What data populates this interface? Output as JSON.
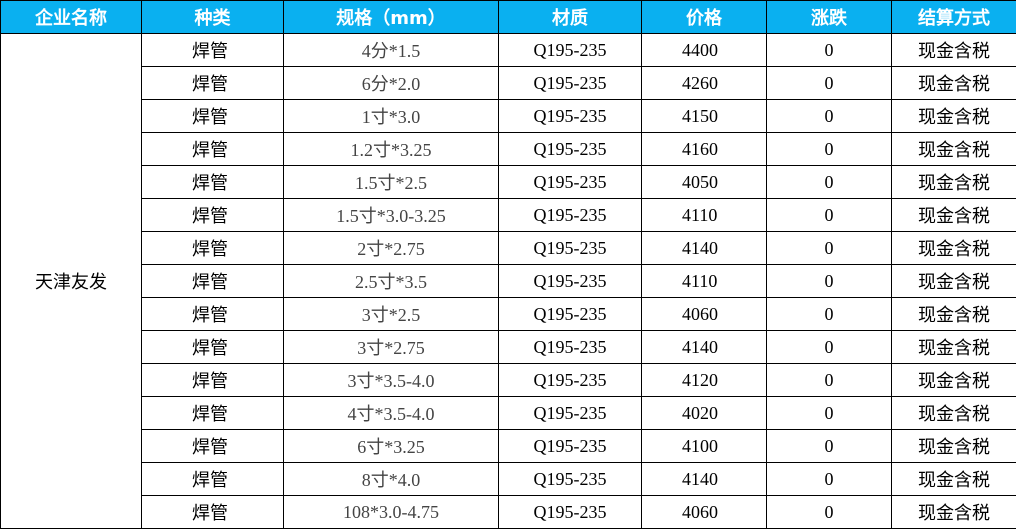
{
  "table": {
    "header": [
      "企业名称",
      "种类",
      "规格（mm）",
      "材质",
      "价格",
      "涨跌",
      "结算方式"
    ],
    "company": "天津友发",
    "rows": [
      [
        "焊管",
        "4分*1.5",
        "Q195-235",
        "4400",
        "0",
        "现金含税"
      ],
      [
        "焊管",
        "6分*2.0",
        "Q195-235",
        "4260",
        "0",
        "现金含税"
      ],
      [
        "焊管",
        "1寸*3.0",
        "Q195-235",
        "4150",
        "0",
        "现金含税"
      ],
      [
        "焊管",
        "1.2寸*3.25",
        "Q195-235",
        "4160",
        "0",
        "现金含税"
      ],
      [
        "焊管",
        "1.5寸*2.5",
        "Q195-235",
        "4050",
        "0",
        "现金含税"
      ],
      [
        "焊管",
        "1.5寸*3.0-3.25",
        "Q195-235",
        "4110",
        "0",
        "现金含税"
      ],
      [
        "焊管",
        "2寸*2.75",
        "Q195-235",
        "4140",
        "0",
        "现金含税"
      ],
      [
        "焊管",
        "2.5寸*3.5",
        "Q195-235",
        "4110",
        "0",
        "现金含税"
      ],
      [
        "焊管",
        "3寸*2.5",
        "Q195-235",
        "4060",
        "0",
        "现金含税"
      ],
      [
        "焊管",
        "3寸*2.75",
        "Q195-235",
        "4140",
        "0",
        "现金含税"
      ],
      [
        "焊管",
        "3寸*3.5-4.0",
        "Q195-235",
        "4120",
        "0",
        "现金含税"
      ],
      [
        "焊管",
        "4寸*3.5-4.0",
        "Q195-235",
        "4020",
        "0",
        "现金含税"
      ],
      [
        "焊管",
        "6寸*3.25",
        "Q195-235",
        "4100",
        "0",
        "现金含税"
      ],
      [
        "焊管",
        "8寸*4.0",
        "Q195-235",
        "4140",
        "0",
        "现金含税"
      ],
      [
        "焊管",
        "108*3.0-4.75",
        "Q195-235",
        "4060",
        "0",
        "现金含税"
      ]
    ]
  }
}
